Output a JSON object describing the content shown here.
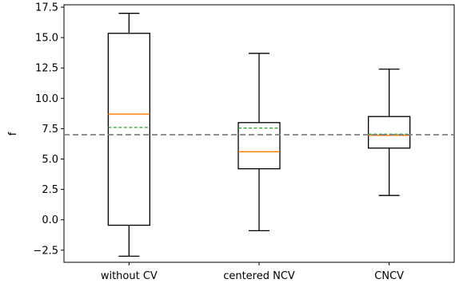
{
  "chart_data": {
    "type": "box",
    "title": "",
    "xlabel": "",
    "ylabel": "f",
    "ylim": [
      -3.5,
      17.7
    ],
    "yticks": [
      -2.5,
      0.0,
      2.5,
      5.0,
      7.5,
      10.0,
      12.5,
      15.0,
      17.5
    ],
    "ytick_labels": [
      "−2.5",
      "0.0",
      "2.5",
      "5.0",
      "7.5",
      "10.0",
      "12.5",
      "15.0",
      "17.5"
    ],
    "categories": [
      "without CV",
      "centered NCV",
      "CNCV"
    ],
    "boxes": [
      {
        "label": "without CV",
        "whisker_low": -3.0,
        "q1": -0.45,
        "median": 8.7,
        "mean": 7.6,
        "q3": 15.35,
        "whisker_high": 17.0
      },
      {
        "label": "centered NCV",
        "whisker_low": -0.9,
        "q1": 4.2,
        "median": 5.6,
        "mean": 7.55,
        "q3": 8.0,
        "whisker_high": 13.7
      },
      {
        "label": "CNCV",
        "whisker_low": 2.0,
        "q1": 5.9,
        "median": 6.95,
        "mean": 7.05,
        "q3": 8.5,
        "whisker_high": 12.4
      }
    ],
    "reference_line": 7.0,
    "grid": false,
    "colors": {
      "box": "#000000",
      "median": "#ff7f0e",
      "mean": "#2ca02c",
      "reference": "#808080",
      "axes": "#000000"
    }
  }
}
